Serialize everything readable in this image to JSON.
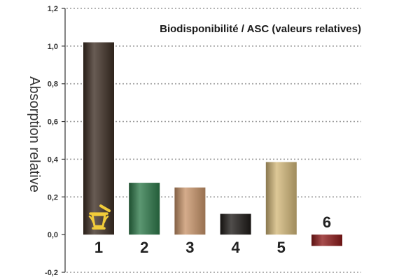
{
  "chart_data": {
    "type": "bar",
    "title": "Biodisponibilité / ASC (valeurs relatives)",
    "xlabel": "",
    "ylabel": "Absorption relative",
    "categories": [
      "1",
      "2",
      "3",
      "4",
      "5",
      "6"
    ],
    "values": [
      1.02,
      0.275,
      0.25,
      0.11,
      0.385,
      -0.06
    ],
    "ylim": [
      -0.2,
      1.2
    ],
    "yticks": [
      -0.2,
      0.0,
      0.2,
      0.4,
      0.6,
      0.8,
      1.0,
      1.2
    ],
    "ytick_labels": [
      "-0,2",
      "0,0",
      "0,2",
      "0,4",
      "0,6",
      "0,8",
      "1,0",
      "1,2"
    ],
    "grid": true,
    "bar_colors": [
      "#3d2e24",
      "#2e7a4a",
      "#c9956a",
      "#1e1b18",
      "#d4b97a",
      "#8e1b1b"
    ],
    "icons": [
      "mortar-pestle-icon",
      "",
      "",
      "",
      "",
      ""
    ]
  }
}
